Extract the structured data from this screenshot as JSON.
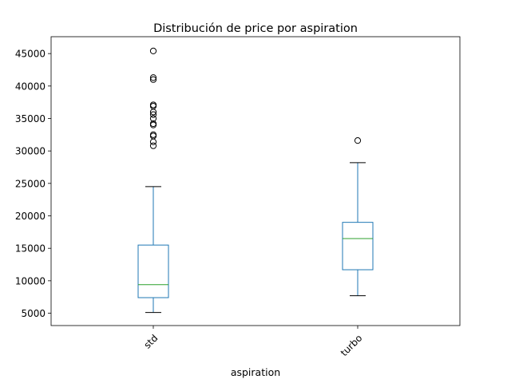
{
  "chart_data": {
    "type": "boxplot",
    "title": "Distribución de price por aspiration",
    "xlabel": "aspiration",
    "ylabel": "",
    "categories": [
      "std",
      "turbo"
    ],
    "ylim": [
      3100,
      47600
    ],
    "yticks": [
      5000,
      10000,
      15000,
      20000,
      25000,
      30000,
      35000,
      40000,
      45000
    ],
    "grid": false,
    "boxes": [
      {
        "category": "std",
        "whisker_low": 5118,
        "q1": 7400,
        "median": 9400,
        "q3": 15500,
        "whisker_high": 24500,
        "outliers": [
          30800,
          31400,
          32300,
          32500,
          34000,
          34200,
          35000,
          35600,
          36000,
          36900,
          37100,
          41000,
          41300,
          45400
        ]
      },
      {
        "category": "turbo",
        "whisker_low": 7700,
        "q1": 11700,
        "median": 16500,
        "q3": 19000,
        "whisker_high": 28200,
        "outliers": [
          31600
        ]
      }
    ],
    "colors": {
      "box": "#1f77b4",
      "median": "#2ca02c",
      "whisker_cap": "#000000",
      "outlier": "#000000"
    }
  }
}
